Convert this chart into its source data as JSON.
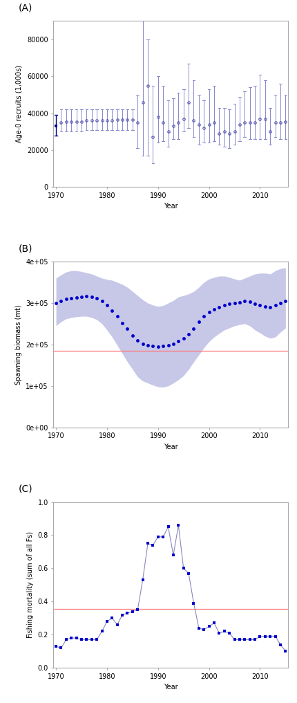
{
  "panel_A": {
    "label": "(A)",
    "years": [
      1970,
      1971,
      1972,
      1973,
      1974,
      1975,
      1976,
      1977,
      1978,
      1979,
      1980,
      1981,
      1982,
      1983,
      1984,
      1985,
      1986,
      1987,
      1988,
      1989,
      1990,
      1991,
      1992,
      1993,
      1994,
      1995,
      1996,
      1997,
      1998,
      1999,
      2000,
      2001,
      2002,
      2003,
      2004,
      2005,
      2006,
      2007,
      2008,
      2009,
      2010,
      2011,
      2012,
      2013,
      2014,
      2015
    ],
    "values": [
      33000,
      35000,
      35500,
      35500,
      35500,
      35500,
      36000,
      36000,
      36000,
      36000,
      36000,
      36000,
      36500,
      36500,
      36500,
      36500,
      35000,
      46000,
      55000,
      27000,
      38000,
      35000,
      30000,
      33000,
      35000,
      37000,
      46000,
      36000,
      34000,
      32000,
      34000,
      35000,
      29000,
      30000,
      29000,
      30000,
      34000,
      35000,
      35000,
      35000,
      37000,
      37000,
      30000,
      35000,
      35000,
      35500
    ],
    "lo": [
      28000,
      30000,
      30000,
      30000,
      30000,
      30000,
      31000,
      31000,
      31000,
      31000,
      31000,
      31000,
      31000,
      31000,
      31000,
      31000,
      21000,
      17000,
      17000,
      13000,
      24000,
      25000,
      22000,
      26000,
      26000,
      30000,
      32000,
      27000,
      23000,
      24000,
      24000,
      25000,
      23000,
      22000,
      21000,
      23000,
      25000,
      27000,
      26000,
      26000,
      26000,
      26000,
      23000,
      27000,
      26000,
      26000
    ],
    "hi": [
      39000,
      42000,
      42000,
      42000,
      42000,
      42000,
      42000,
      42000,
      42000,
      42000,
      42000,
      42000,
      42000,
      42000,
      42000,
      42000,
      50000,
      90000,
      80000,
      55000,
      60000,
      55000,
      47000,
      48000,
      51000,
      53000,
      67000,
      58000,
      50000,
      47000,
      53000,
      55000,
      43000,
      43000,
      42000,
      45000,
      49000,
      52000,
      54000,
      55000,
      61000,
      58000,
      43000,
      50000,
      56000,
      50000
    ],
    "first_color": "#00008B",
    "color": "#8888CC",
    "dark_color": "#4444AA",
    "ylabel": "Age-0 recruits (1,000s)",
    "xlabel": "Year",
    "ylim": [
      0,
      90000
    ],
    "yticks": [
      0,
      20000,
      40000,
      60000,
      80000
    ],
    "ytick_labels": [
      "0",
      "20000",
      "40000",
      "60000",
      "80000"
    ]
  },
  "panel_B": {
    "label": "(B)",
    "years": [
      1970,
      1971,
      1972,
      1973,
      1974,
      1975,
      1976,
      1977,
      1978,
      1979,
      1980,
      1981,
      1982,
      1983,
      1984,
      1985,
      1986,
      1987,
      1988,
      1989,
      1990,
      1991,
      1992,
      1993,
      1994,
      1995,
      1996,
      1997,
      1998,
      1999,
      2000,
      2001,
      2002,
      2003,
      2004,
      2005,
      2006,
      2007,
      2008,
      2009,
      2010,
      2011,
      2012,
      2013,
      2014,
      2015
    ],
    "values": [
      300000,
      305000,
      310000,
      312000,
      314000,
      315000,
      316000,
      315000,
      312000,
      305000,
      295000,
      282000,
      268000,
      252000,
      238000,
      222000,
      210000,
      202000,
      198000,
      196000,
      195000,
      196000,
      198000,
      202000,
      208000,
      215000,
      225000,
      238000,
      255000,
      268000,
      278000,
      285000,
      290000,
      295000,
      298000,
      300000,
      302000,
      305000,
      303000,
      298000,
      295000,
      292000,
      290000,
      295000,
      300000,
      305000
    ],
    "lo": [
      245000,
      255000,
      262000,
      265000,
      267000,
      268000,
      268000,
      265000,
      260000,
      250000,
      235000,
      218000,
      198000,
      178000,
      158000,
      140000,
      122000,
      112000,
      107000,
      102000,
      98000,
      97000,
      100000,
      107000,
      115000,
      125000,
      140000,
      158000,
      175000,
      192000,
      207000,
      218000,
      227000,
      235000,
      240000,
      245000,
      248000,
      250000,
      245000,
      235000,
      228000,
      220000,
      215000,
      218000,
      230000,
      240000
    ],
    "hi": [
      360000,
      368000,
      375000,
      378000,
      378000,
      376000,
      373000,
      370000,
      365000,
      360000,
      357000,
      355000,
      350000,
      345000,
      338000,
      328000,
      318000,
      308000,
      300000,
      295000,
      292000,
      294000,
      300000,
      306000,
      315000,
      318000,
      322000,
      328000,
      338000,
      350000,
      358000,
      362000,
      365000,
      365000,
      362000,
      358000,
      355000,
      360000,
      365000,
      370000,
      372000,
      372000,
      370000,
      378000,
      383000,
      385000
    ],
    "dot_color": "#0000CC",
    "fill_color": "#AAAADD",
    "ref_line": 185000,
    "ref_color": "#FF7777",
    "ylabel": "Spawning biomass (mt)",
    "xlabel": "Year",
    "ylim": [
      0,
      400000
    ],
    "yticks": [
      0,
      100000,
      200000,
      300000,
      400000
    ],
    "ytick_labels": [
      "0e+00",
      "1e+05",
      "2e+05",
      "3e+05",
      "4e+05"
    ]
  },
  "panel_C": {
    "label": "(C)",
    "years": [
      1970,
      1971,
      1972,
      1973,
      1974,
      1975,
      1976,
      1977,
      1978,
      1979,
      1980,
      1981,
      1982,
      1983,
      1984,
      1985,
      1986,
      1987,
      1988,
      1989,
      1990,
      1991,
      1992,
      1993,
      1994,
      1995,
      1996,
      1997,
      1998,
      1999,
      2000,
      2001,
      2002,
      2003,
      2004,
      2005,
      2006,
      2007,
      2008,
      2009,
      2010,
      2011,
      2012,
      2013,
      2014,
      2015
    ],
    "values": [
      0.13,
      0.12,
      0.17,
      0.18,
      0.18,
      0.17,
      0.17,
      0.17,
      0.17,
      0.22,
      0.28,
      0.3,
      0.26,
      0.32,
      0.33,
      0.34,
      0.35,
      0.53,
      0.75,
      0.74,
      0.79,
      0.79,
      0.85,
      0.68,
      0.86,
      0.6,
      0.57,
      0.39,
      0.24,
      0.23,
      0.25,
      0.27,
      0.21,
      0.22,
      0.21,
      0.17,
      0.17,
      0.17,
      0.17,
      0.17,
      0.19,
      0.19,
      0.19,
      0.19,
      0.14,
      0.1
    ],
    "dot_color": "#0000CC",
    "line_color": "#8888BB",
    "ref_line": 0.355,
    "ref_color": "#FF7777",
    "ylabel": "Fishing mortality (sum of all Fs)",
    "xlabel": "Year",
    "ylim": [
      0,
      1.0
    ],
    "yticks": [
      0.0,
      0.2,
      0.4,
      0.6,
      0.8,
      1.0
    ],
    "ytick_labels": [
      "0.0",
      "0.2",
      "0.4",
      "0.6",
      "0.8",
      "1.0"
    ]
  },
  "bg_color": "#FFFFFF",
  "plot_bg": "#FFFFFF",
  "xlim": [
    1969.5,
    2015.5
  ],
  "xticks": [
    1970,
    1980,
    1990,
    2000,
    2010
  ]
}
